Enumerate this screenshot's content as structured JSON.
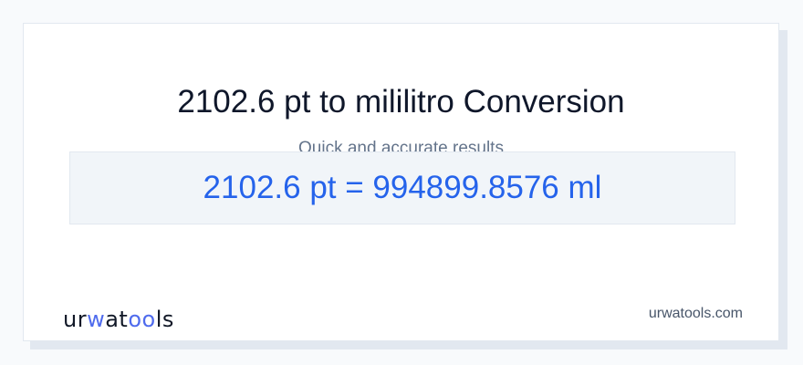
{
  "header": {
    "title": "2102.6 pt to mililitro Conversion",
    "subtitle": "Quick and accurate results"
  },
  "result": {
    "text": "2102.6 pt = 994899.8576 ml"
  },
  "footer": {
    "logo": "urwatools",
    "logo_parts": [
      "ur",
      "w",
      "at",
      "oo",
      "ls"
    ],
    "site": "urwatools.com"
  },
  "colors": {
    "accent": "#2563eb",
    "logo_accent": "#4f6bed"
  }
}
